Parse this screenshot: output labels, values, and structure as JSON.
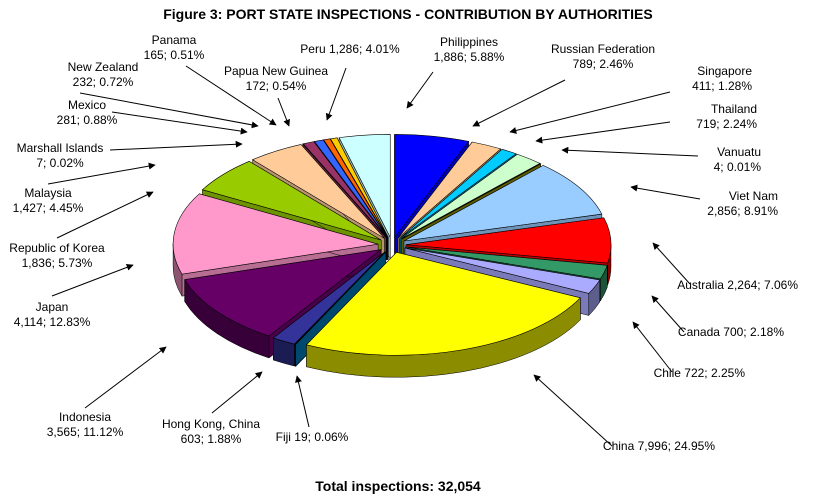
{
  "chart_data": {
    "type": "pie",
    "title": "Figure 3: PORT STATE INSPECTIONS - CONTRIBUTION BY AUTHORITIES",
    "footer": "Total inspections: 32,054",
    "slices": [
      {
        "label": "Philippines",
        "value": 1886,
        "pct": "5.88%",
        "color": "#0000ff",
        "text": [
          "Philippines",
          "1,886; 5.88%"
        ]
      },
      {
        "label": "Russian Federation",
        "value": 789,
        "pct": "2.46%",
        "color": "#ffcc99",
        "text": [
          "Russian Federation",
          "789; 2.46%"
        ]
      },
      {
        "label": "Singapore",
        "value": 411,
        "pct": "1.28%",
        "color": "#00ccff",
        "text": [
          "Singapore",
          "411; 1.28%"
        ]
      },
      {
        "label": "Thailand",
        "value": 719,
        "pct": "2.24%",
        "color": "#ccffcc",
        "text": [
          "Thailand",
          "719; 2.24%"
        ]
      },
      {
        "label": "Vanuatu",
        "value": 4,
        "pct": "0.01%",
        "color": "#808000",
        "text": [
          "Vanuatu",
          "4; 0.01%"
        ]
      },
      {
        "label": "Viet Nam",
        "value": 2856,
        "pct": "8.91%",
        "color": "#99ccff",
        "text": [
          "Viet Nam",
          "2,856; 8.91%"
        ]
      },
      {
        "label": "Australia",
        "value": 2264,
        "pct": "7.06%",
        "color": "#ff0000",
        "text": [
          "Australia 2,264; 7.06%"
        ]
      },
      {
        "label": "Canada",
        "value": 700,
        "pct": "2.18%",
        "color": "#339966",
        "text": [
          "Canada 700; 2.18%"
        ]
      },
      {
        "label": "Chile",
        "value": 722,
        "pct": "2.25%",
        "color": "#aaaaff",
        "text": [
          "Chile 722; 2.25%"
        ]
      },
      {
        "label": "China",
        "value": 7996,
        "pct": "24.95%",
        "color": "#ffff00",
        "text": [
          "China 7,996; 24.95%"
        ]
      },
      {
        "label": "Fiji",
        "value": 19,
        "pct": "0.06%",
        "color": "#006699",
        "text": [
          "Fiji 19; 0.06%"
        ]
      },
      {
        "label": "Hong Kong, China",
        "value": 603,
        "pct": "1.88%",
        "color": "#333399",
        "text": [
          "Hong Kong, China",
          "603; 1.88%"
        ]
      },
      {
        "label": "Indonesia",
        "value": 3565,
        "pct": "11.12%",
        "color": "#660066",
        "text": [
          "Indonesia",
          "3,565; 11.12%"
        ]
      },
      {
        "label": "Japan",
        "value": 4114,
        "pct": "12.83%",
        "color": "#ff99cc",
        "text": [
          "Japan",
          "4,114; 12.83%"
        ]
      },
      {
        "label": "Republic of Korea",
        "value": 1836,
        "pct": "5.73%",
        "color": "#99cc00",
        "text": [
          "Republic of Korea",
          "1,836; 5.73%"
        ]
      },
      {
        "label": "Malaysia",
        "value": 1427,
        "pct": "4.45%",
        "color": "#ffcc99",
        "text": [
          "Malaysia",
          "1,427; 4.45%"
        ]
      },
      {
        "label": "Marshall Islands",
        "value": 7,
        "pct": "0.02%",
        "color": "#993366",
        "text": [
          "Marshall Islands",
          "7; 0.02%"
        ]
      },
      {
        "label": "Mexico",
        "value": 281,
        "pct": "0.88%",
        "color": "#993366",
        "text": [
          "Mexico",
          "281; 0.88%"
        ]
      },
      {
        "label": "New Zealand",
        "value": 232,
        "pct": "0.72%",
        "color": "#3366ff",
        "text": [
          "New Zealand",
          "232; 0.72%"
        ]
      },
      {
        "label": "Panama",
        "value": 165,
        "pct": "0.51%",
        "color": "#ff6600",
        "text": [
          "Panama",
          "165; 0.51%"
        ]
      },
      {
        "label": "Papua New Guinea",
        "value": 172,
        "pct": "0.54%",
        "color": "#ffcc00",
        "text": [
          "Papua New Guinea",
          "172; 0.54%"
        ]
      },
      {
        "label": "Peru",
        "value": 1286,
        "pct": "4.01%",
        "color": "#ccffff",
        "text": [
          "Peru 1,286; 4.01%"
        ]
      }
    ]
  }
}
